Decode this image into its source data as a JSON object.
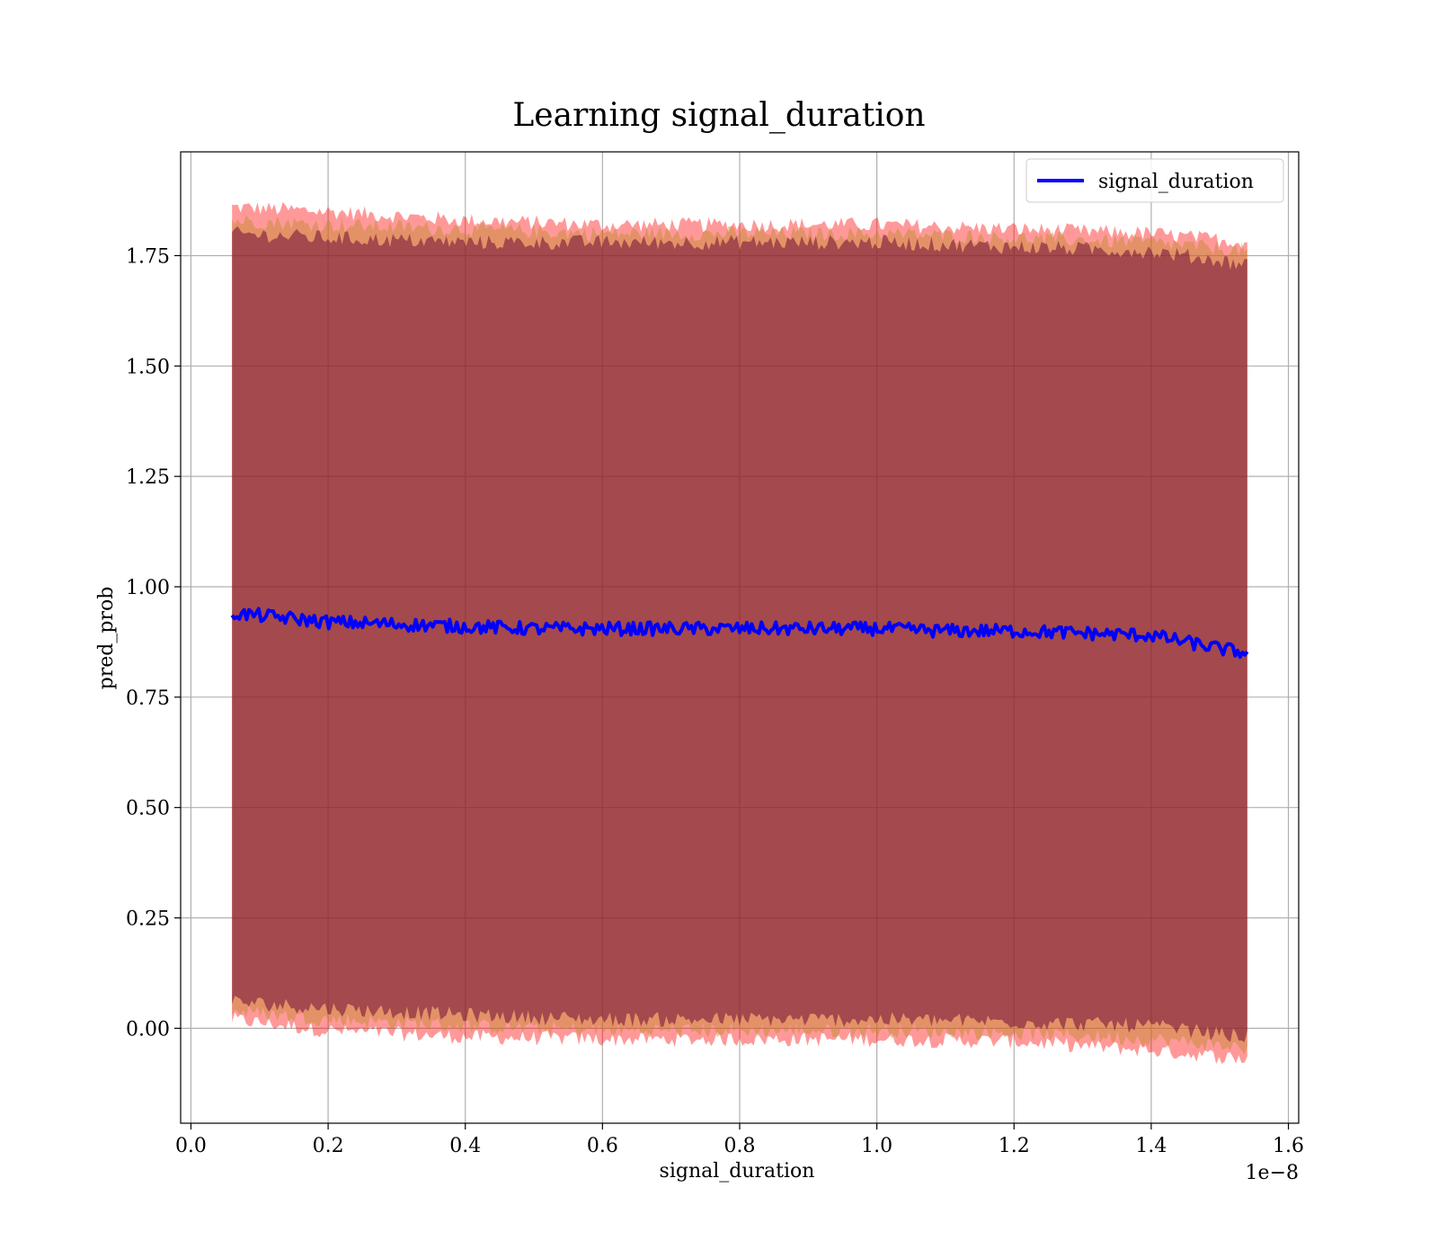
{
  "chart_data": {
    "type": "line",
    "title": "Learning signal_duration",
    "xlabel": "signal_duration",
    "ylabel": "pred_prob",
    "x_offset_label": "1e−8",
    "xlim": [
      -0.015,
      1.615
    ],
    "ylim": [
      -0.215,
      1.985
    ],
    "xticks": [
      0.0,
      0.2,
      0.4,
      0.6,
      0.8,
      1.0,
      1.2,
      1.4,
      1.6
    ],
    "xtick_labels": [
      "0.0",
      "0.2",
      "0.4",
      "0.6",
      "0.8",
      "1.0",
      "1.2",
      "1.4",
      "1.6"
    ],
    "yticks": [
      0.0,
      0.25,
      0.5,
      0.75,
      1.0,
      1.25,
      1.5,
      1.75
    ],
    "ytick_labels": [
      "0.00",
      "0.25",
      "0.50",
      "0.75",
      "1.00",
      "1.25",
      "1.50",
      "1.75"
    ],
    "grid": true,
    "legend_position": "top-right",
    "series": [
      {
        "name": "signal_duration",
        "color": "#0000ff",
        "x": [
          0.06,
          0.1,
          0.2,
          0.3,
          0.4,
          0.5,
          0.6,
          0.7,
          0.8,
          0.9,
          1.0,
          1.1,
          1.2,
          1.3,
          1.4,
          1.5,
          1.54
        ],
        "y": [
          0.94,
          0.935,
          0.92,
          0.915,
          0.91,
          0.905,
          0.905,
          0.905,
          0.905,
          0.905,
          0.905,
          0.9,
          0.9,
          0.895,
          0.89,
          0.86,
          0.85
        ]
      }
    ],
    "bands": [
      {
        "color": "#ff0000",
        "x": [
          0.06,
          0.2,
          0.4,
          0.6,
          0.8,
          1.0,
          1.2,
          1.4,
          1.54
        ],
        "upper": [
          1.86,
          1.85,
          1.83,
          1.82,
          1.82,
          1.82,
          1.81,
          1.8,
          1.78
        ],
        "lower": [
          0.02,
          -0.005,
          -0.02,
          -0.025,
          -0.025,
          -0.025,
          -0.03,
          -0.05,
          -0.07
        ]
      },
      {
        "color": "#c28a2a",
        "x": [
          0.06,
          0.2,
          0.4,
          0.6,
          0.8,
          1.0,
          1.2,
          1.4,
          1.54
        ],
        "upper": [
          1.83,
          1.82,
          1.81,
          1.8,
          1.8,
          1.8,
          1.79,
          1.78,
          1.76
        ],
        "lower": [
          0.04,
          0.02,
          0.005,
          -0.005,
          -0.005,
          -0.005,
          -0.01,
          -0.025,
          -0.045
        ]
      },
      {
        "color": "#660033",
        "x": [
          0.06,
          0.2,
          0.4,
          0.6,
          0.8,
          1.0,
          1.2,
          1.4,
          1.54
        ],
        "upper": [
          1.8,
          1.79,
          1.78,
          1.78,
          1.78,
          1.78,
          1.77,
          1.76,
          1.73
        ],
        "lower": [
          0.06,
          0.045,
          0.03,
          0.02,
          0.02,
          0.02,
          0.015,
          0.005,
          -0.02
        ]
      }
    ]
  }
}
